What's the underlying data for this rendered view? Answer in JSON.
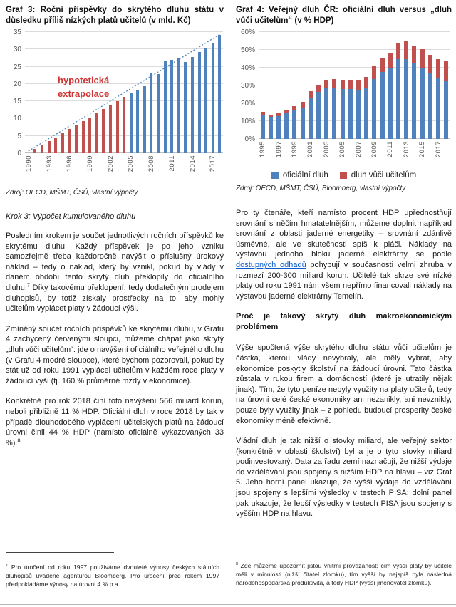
{
  "left_column": {
    "step_heading": "Krok 3: Výpočet kumulovaného dluhu",
    "paragraphs": [
      [
        {
          "t": "Posledním krokem je součet jednotlivých ročních příspěvků ke skrytému dluhu. Každý příspěvek je po jeho vzniku samozřejmě třeba každoročně navýšit o příslušný úrokový náklad – tedy o náklad, který by vznikl, pokud by vlády v daném období tento skrytý dluh překlopily do oficiálního dluhu."
        },
        {
          "t": "7",
          "s": "sup"
        },
        {
          "t": " Díky takovému překlopení, tedy dodatečným prodejem dluhopisů, by totiž získaly prostředky na to, aby mohly učitelům vyplácet platy v žádoucí výši."
        }
      ],
      [
        {
          "t": "Zmíněný součet ročních příspěvků ke skrytému dluhu, v Grafu 4 zachycený červenými sloupci, můžeme chápat jako skrytý „dluh vůči učitelům“: jde o navýšení oficiálního veřejného dluhu (v Grafu 4 modré sloupce), které bychom pozorovali, pokud by stát už od roku 1991 vyplácel učitelům v každém roce platy v žádoucí výši (tj. 160 % průměrné mzdy v ekonomice)."
        }
      ],
      [
        {
          "t": "Konkrétně pro rok 2018 činí toto navýšení 566 miliard korun, neboli přibližně 11 % HDP. Oficiální dluh v roce 2018 by tak v případě dlouhodobého vyplácení učitelských platů na žádoucí úrovni činil 44 % HDP (namísto oficiálně vykazovaných 33 %)."
        },
        {
          "t": "8",
          "s": "sup"
        }
      ]
    ],
    "footnote": [
      {
        "t": "7",
        "s": "sup"
      },
      {
        "t": " Pro úročení od roku 1997 používáme dvouleté výnosy českých státních dluhopisů uváděné agenturou Bloomberg. Pro úročení před rokem 1997 předpokládáme výnosy na úrovni 4 % p.a.."
      }
    ]
  },
  "right_column": {
    "paragraphs": [
      [
        {
          "t": "Pro ty čtenáře, kteří namísto procent HDP upřednostňují srovnání s něčím hmatatelnějším, můžeme doplnit například srovnání z oblasti jaderné energetiky – srovnání zdánlivě úsměvné, ale ve skutečnosti spíš k pláči. Náklady na výstavbu jednoho bloku jaderné elektrárny se podle "
        },
        {
          "t": "dostupných odhadů",
          "s": "link"
        },
        {
          "t": " pohybují v současnosti velmi zhruba v rozmezí 200-300 miliard korun. Učitelé tak skrze své nízké platy od roku 1991 nám všem nepřímo financovali náklady na výstavbu jaderné elektrárny Temelín."
        }
      ],
      [
        {
          "t": "Výše spočtená výše skrytého dluhu státu vůči učitelům je částka, kterou vlády nevybraly, ale měly vybrat, aby ekonomice poskytly školství na žádoucí úrovni. Tato částka zůstala v rukou firem a domácností (které je utratily nějak jinak). Tím, že tyto peníze nebyly využity na platy učitelů, tedy na úrovni celé české ekonomiky ani nezanikly, ani nevznikly, pouze byly využity jinak – z pohledu budoucí prosperity české ekonomiky méně efektivně."
        }
      ],
      [
        {
          "t": "Vládní dluh je tak nižší o stovky miliard, ale veřejný sektor (konkrétně v oblasti školství) byl a je o tyto stovky miliard podinvestovaný. Data za řadu zemí naznačují, že nižší výdaje do vzdělávání jsou spojeny s nižším HDP na hlavu – viz Graf 5. Jeho horní panel ukazuje, že vyšší výdaje do vzdělávání jsou spojeny s lepšími výsledky v testech PISA; dolní panel pak ukazuje, že lepší výsledky v testech PISA jsou spojeny s vyšším HDP na hlavu."
        }
      ]
    ],
    "section_heading": "Proč je takový skrytý dluh makroekonomickým problémem",
    "footnote": [
      {
        "t": "8",
        "s": "sup"
      },
      {
        "t": " Zde můžeme upozornit jistou vnitřní provázanost: čím vyšší platy by učitelé měli v minulosti (nižší čitatel zlomku), tím vyšší by nejspíš byla následná národohospodářská produktivita, a tedy HDP (vyšší jmenovatel zlomku)."
      }
    ]
  },
  "chart_data": [
    {
      "id": "graf3",
      "type": "bar",
      "title": "Graf 3: Roční příspěvky do skrytého dluhu státu v důsledku příliš nízkých platů učitelů (v mld. Kč)",
      "source": "Zdroj: OECD, MŠMT, ČSÚ, vlastní výpočty",
      "ylim": [
        0,
        35
      ],
      "ytick_step": 5,
      "x": [
        1990,
        1991,
        1992,
        1993,
        1994,
        1995,
        1996,
        1997,
        1998,
        1999,
        2000,
        2001,
        2002,
        2003,
        2004,
        2005,
        2006,
        2007,
        2008,
        2009,
        2010,
        2011,
        2012,
        2013,
        2014,
        2015,
        2016,
        2017,
        2018
      ],
      "values": [
        0,
        1.2,
        2.3,
        3.5,
        4.6,
        5.8,
        7.0,
        8.1,
        9.3,
        10.4,
        11.6,
        12.7,
        13.9,
        15.1,
        16.2,
        17.4,
        18.1,
        19.4,
        23.3,
        22.8,
        26.7,
        27.0,
        27.4,
        26.3,
        27.9,
        29.2,
        30.3,
        32.0,
        34.1
      ],
      "extrapolation_through": 2004,
      "colors": {
        "actual": "#4f81bd",
        "extrapolation": "#c0504d",
        "trend": "#4f81bd"
      },
      "trendline": {
        "x0": 1990,
        "y0": 0.6,
        "x1": 2018,
        "y1": 34.3
      },
      "annotation": {
        "lines": [
          "hypotetická",
          "extrapolace"
        ],
        "color": "#cc3333"
      },
      "xtick_start": 1990,
      "xtick_every": 3,
      "grid": true,
      "legend": "none"
    },
    {
      "id": "graf4",
      "type": "stacked-bar",
      "title": "Graf 4: Veřejný dluh ČR: oficiální dluh versus „dluh vůči učitelům“ (v % HDP)",
      "source": "Zdroj: OECD, MŠMT, ČSÚ, Bloomberg, vlastní výpočty",
      "ylim": [
        0,
        60
      ],
      "ytick_step": 10,
      "ytick_suffix": "%",
      "x": [
        1995,
        1996,
        1997,
        1998,
        1999,
        2000,
        2001,
        2002,
        2003,
        2004,
        2005,
        2006,
        2007,
        2008,
        2009,
        2010,
        2011,
        2012,
        2013,
        2014,
        2015,
        2016,
        2017,
        2018
      ],
      "series": [
        {
          "name": "oficiální dluh",
          "color": "#4f81bd",
          "values": [
            13.8,
            12.3,
            13.0,
            14.8,
            16.0,
            17.8,
            23.0,
            26.3,
            28.5,
            28.8,
            28.0,
            27.9,
            27.5,
            28.3,
            33.6,
            37.5,
            40.0,
            44.7,
            44.7,
            42.3,
            40.0,
            36.8,
            34.5,
            33.0
          ]
        },
        {
          "name": "dluh vůči učitelům",
          "color": "#c0504d",
          "values": [
            1.3,
            1.2,
            1.5,
            1.8,
            2.4,
            3.0,
            4.0,
            4.2,
            4.6,
            4.8,
            5.2,
            5.5,
            5.8,
            6.4,
            7.2,
            8.0,
            8.6,
            9.1,
            10.3,
            10.0,
            10.3,
            10.4,
            10.3,
            11.0
          ]
        }
      ],
      "xtick_start": 1995,
      "xtick_every": 2,
      "grid": true,
      "legend": "bottom"
    }
  ]
}
